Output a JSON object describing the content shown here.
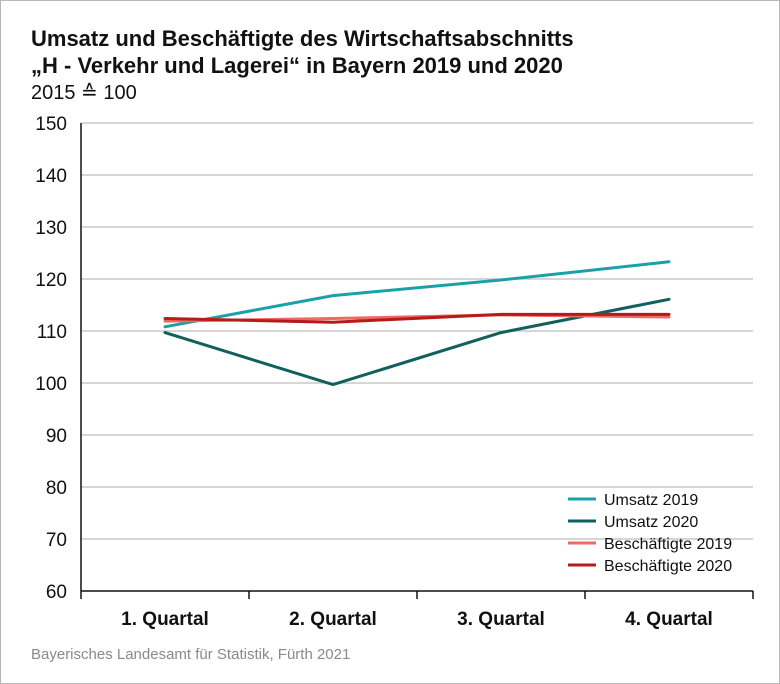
{
  "header": {
    "title_line1": "Umsatz und Beschäftigte des Wirtschaftsabschnitts",
    "title_line2": "„H - Verkehr und Lagerei“ in Bayern 2019 und 2020",
    "subtitle": "2015 ≙ 100"
  },
  "footer": {
    "source": "Bayerisches Landesamt für Statistik, Fürth 2021"
  },
  "chart_data": {
    "type": "line",
    "categories": [
      "1. Quartal",
      "2. Quartal",
      "3. Quartal",
      "4. Quartal"
    ],
    "ylim": [
      60,
      150
    ],
    "yticks": [
      60,
      70,
      80,
      90,
      100,
      110,
      120,
      130,
      140,
      150
    ],
    "grid": true,
    "legend_position": "bottom-right",
    "series": [
      {
        "name": "Umsatz 2019",
        "color": "#1aa1a8",
        "values": [
          110.8,
          116.8,
          119.8,
          123.3
        ]
      },
      {
        "name": "Umsatz 2020",
        "color": "#12605e",
        "values": [
          109.7,
          99.7,
          109.7,
          116.1
        ]
      },
      {
        "name": "Beschäftigte 2019",
        "color": "#ef6a63",
        "values": [
          111.9,
          112.4,
          113.1,
          112.7
        ]
      },
      {
        "name": "Beschäftigte 2020",
        "color": "#b41c1c",
        "values": [
          112.4,
          111.7,
          113.2,
          113.2
        ]
      }
    ]
  }
}
